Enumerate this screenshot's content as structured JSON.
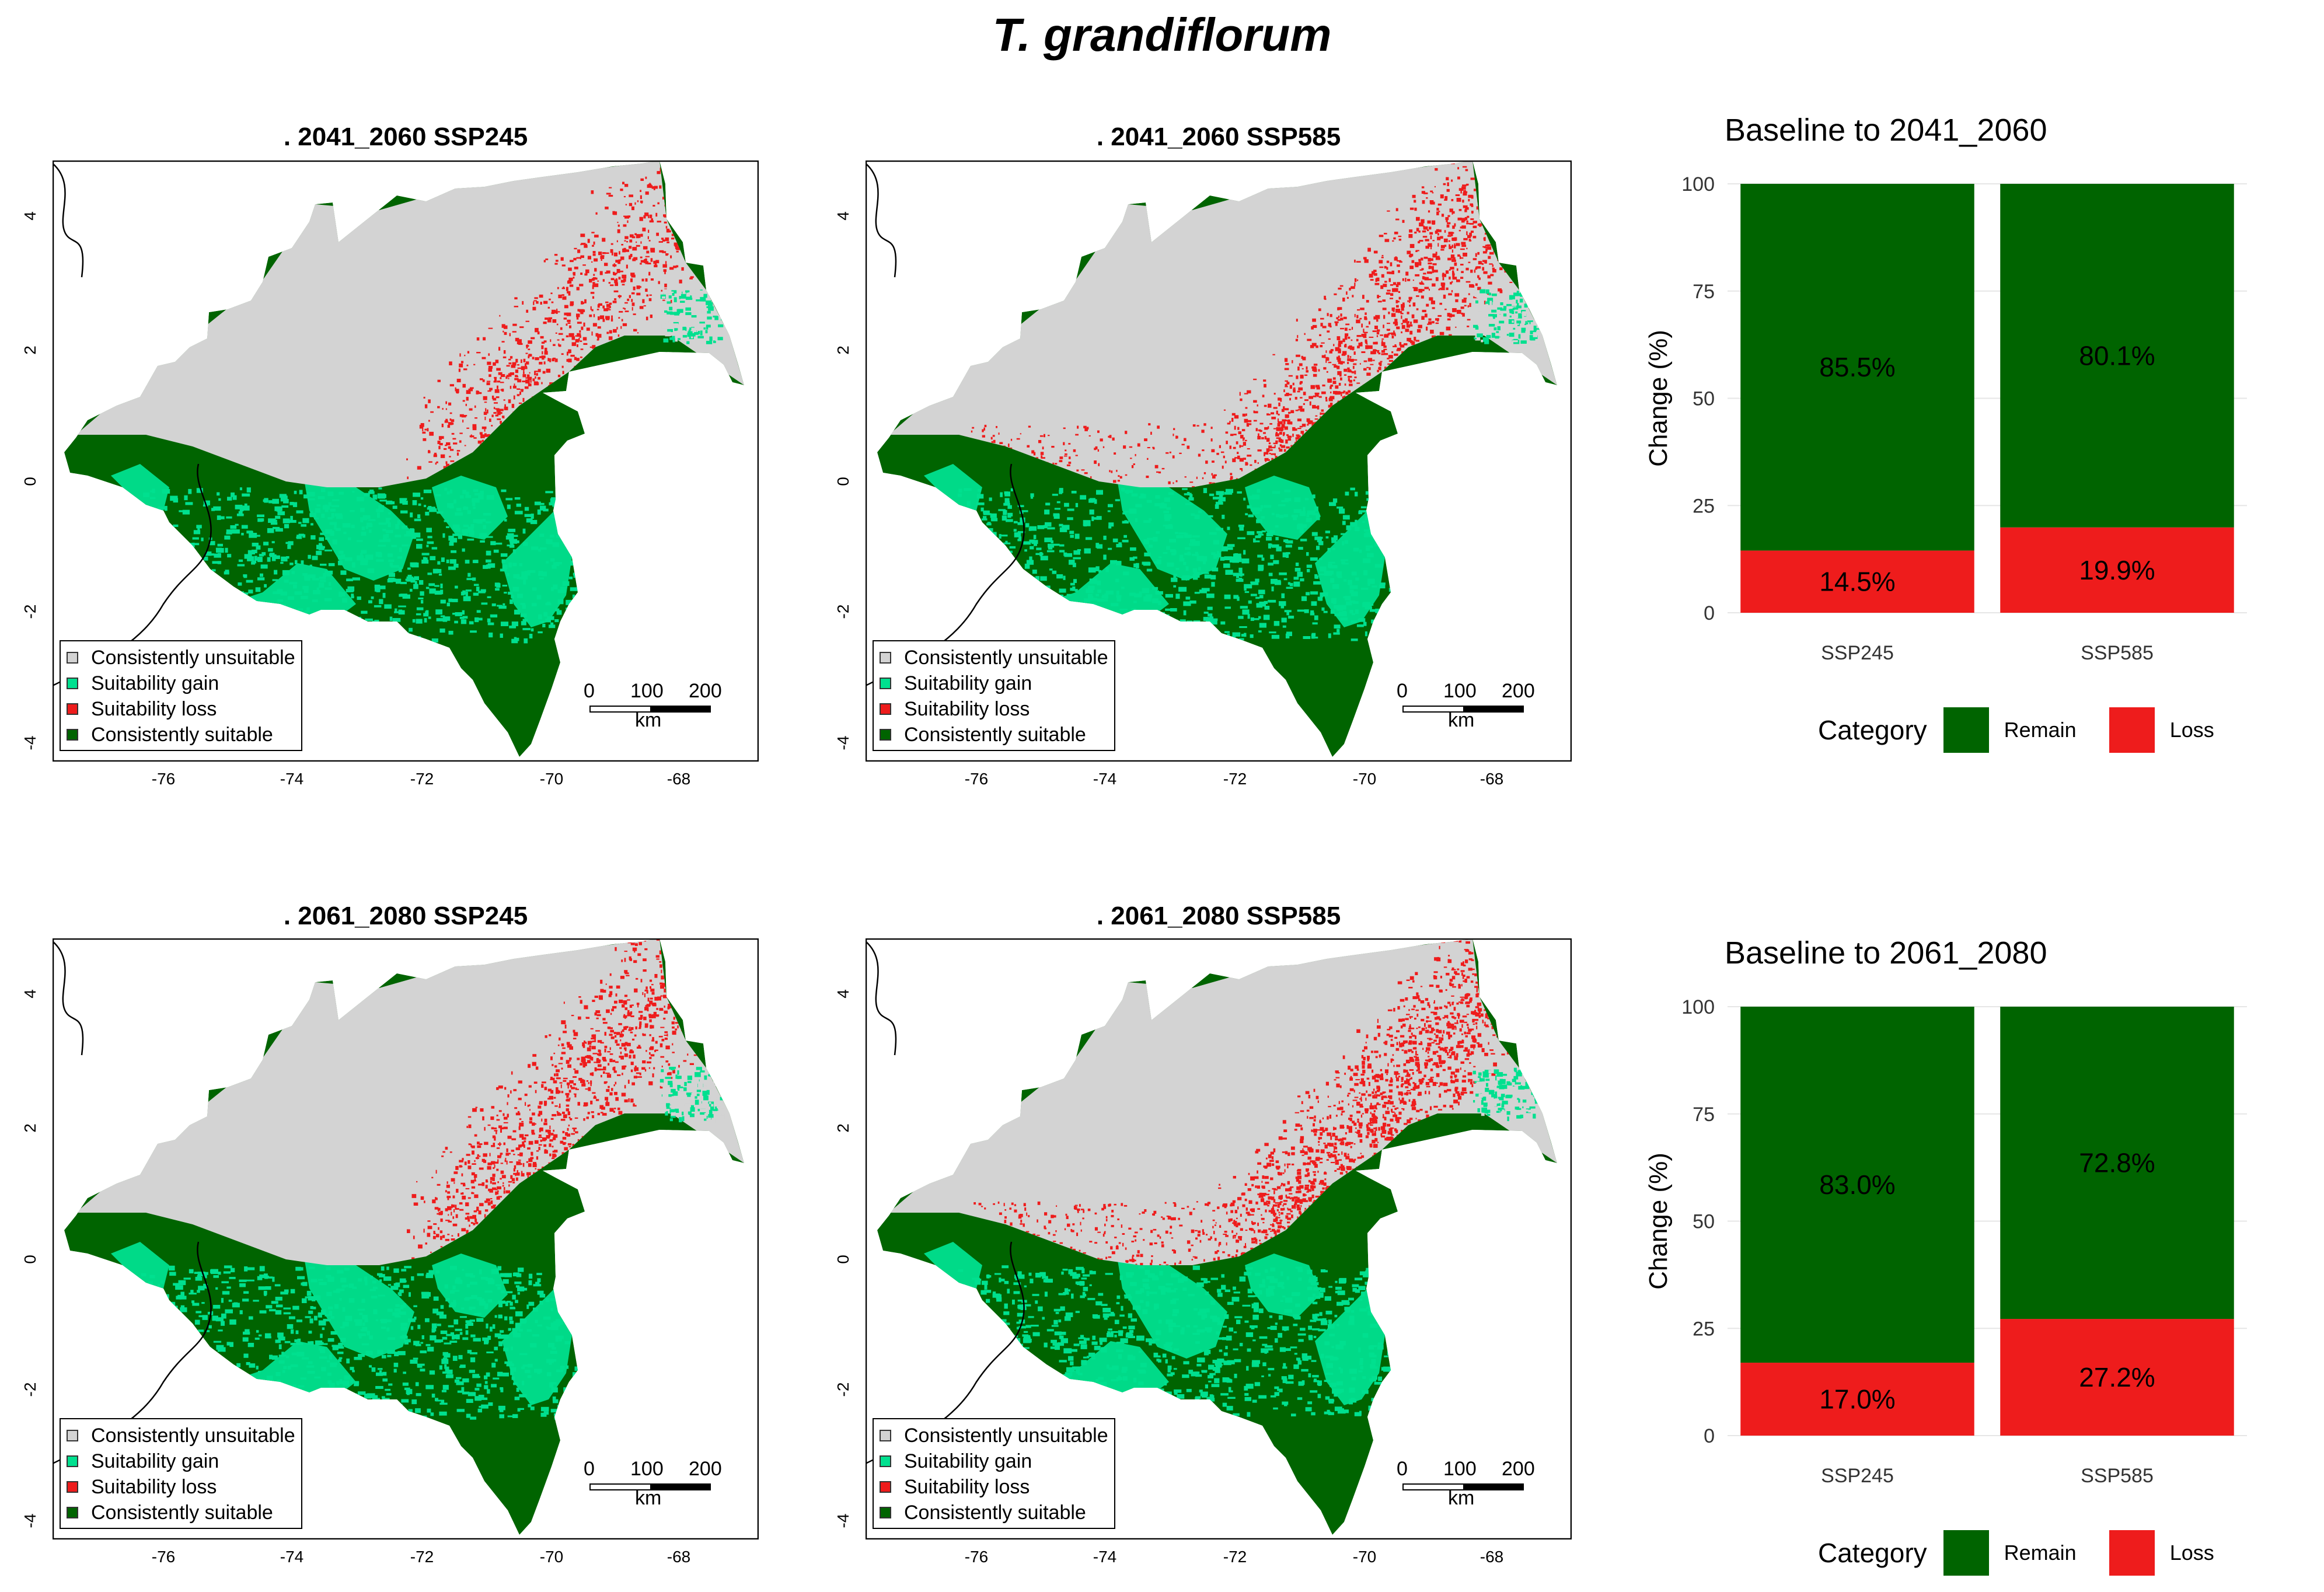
{
  "title": "T. grandiflorum",
  "maps": [
    {
      "title": ". 2041_2060  SSP245"
    },
    {
      "title": ". 2041_2060  SSP585"
    },
    {
      "title": ". 2061_2080  SSP245"
    },
    {
      "title": ". 2061_2080  SSP585"
    }
  ],
  "map_axes": {
    "x_ticks": [
      "-76",
      "-74",
      "-72",
      "-70",
      "-68"
    ],
    "y_ticks": [
      "4",
      "2",
      "0",
      "-2",
      "-4"
    ]
  },
  "map_legend": {
    "items": [
      {
        "label": "Consistently unsuitable",
        "color": "#d3d3d3"
      },
      {
        "label": "Suitability gain",
        "color": "#00e08f"
      },
      {
        "label": "Suitability loss",
        "color": "#ee1c1c"
      },
      {
        "label": "Consistently suitable",
        "color": "#006400"
      }
    ]
  },
  "scalebar": {
    "n0": "0",
    "n1": "100",
    "n2": "200",
    "unit": "km"
  },
  "bar_legend": {
    "title": "Category",
    "remain": "Remain",
    "loss": "Loss"
  },
  "colors": {
    "remain": "#006400",
    "loss": "#ee1c1c"
  },
  "chart_data": [
    {
      "type": "bar",
      "stacked": true,
      "title": "Baseline to  2041_2060",
      "ylabel": "Change (%)",
      "ylim": [
        0,
        100
      ],
      "yticks": [
        "0",
        "25",
        "50",
        "75",
        "100"
      ],
      "categories": [
        "SSP245",
        "SSP585"
      ],
      "series": [
        {
          "name": "Remain",
          "values": [
            85.5,
            80.1
          ],
          "labels": [
            "85.5%",
            "80.1%"
          ]
        },
        {
          "name": "Loss",
          "values": [
            14.5,
            19.9
          ],
          "labels": [
            "14.5%",
            "19.9%"
          ]
        }
      ]
    },
    {
      "type": "bar",
      "stacked": true,
      "title": "Baseline to  2061_2080",
      "ylabel": "Change (%)",
      "ylim": [
        0,
        100
      ],
      "yticks": [
        "0",
        "25",
        "50",
        "75",
        "100"
      ],
      "categories": [
        "SSP245",
        "SSP585"
      ],
      "series": [
        {
          "name": "Remain",
          "values": [
            83.0,
            72.8
          ],
          "labels": [
            "83.0%",
            "72.8%"
          ]
        },
        {
          "name": "Loss",
          "values": [
            17.0,
            27.2
          ],
          "labels": [
            "17.0%",
            "27.2%"
          ]
        }
      ]
    }
  ]
}
